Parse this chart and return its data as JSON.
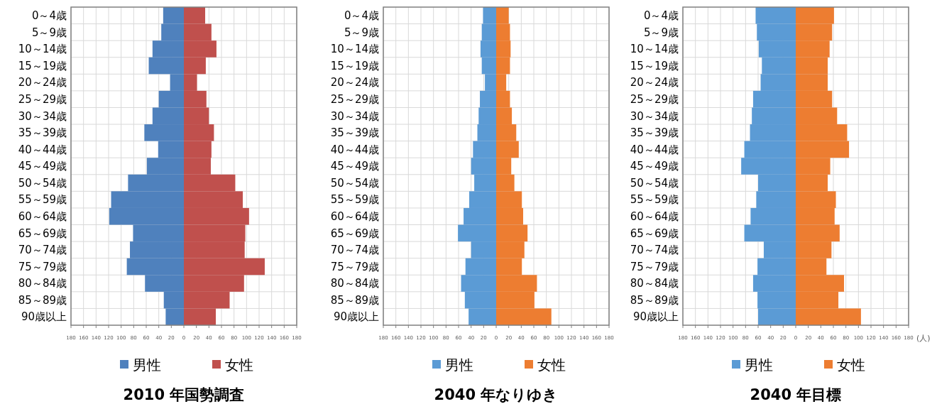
{
  "chart_data": [
    {
      "type": "bar",
      "orientation": "horizontal",
      "stacked": true,
      "title": "2010 年国勢調査",
      "categories": [
        "0～4歳",
        "5～9歳",
        "10～14歳",
        "15～19歳",
        "20～24歳",
        "25～29歳",
        "30～34歳",
        "35～39歳",
        "40～44歳",
        "45～49歳",
        "50～54歳",
        "55～59歳",
        "60～64歳",
        "65～69歳",
        "70～74歳",
        "75～79歳",
        "80～84歳",
        "85～89歳",
        "90歳以上"
      ],
      "series": [
        {
          "name": "男性",
          "color": "#4f81bd",
          "values": [
            -33,
            -36,
            -50,
            -56,
            -22,
            -40,
            -50,
            -63,
            -41,
            -59,
            -89,
            -116,
            -119,
            -81,
            -86,
            -91,
            -62,
            -32,
            -29
          ]
        },
        {
          "name": "女性",
          "color": "#c0504d",
          "values": [
            34,
            44,
            52,
            35,
            21,
            36,
            40,
            48,
            44,
            43,
            82,
            94,
            104,
            98,
            97,
            129,
            96,
            73,
            51
          ]
        }
      ],
      "xlim": [
        -180,
        180
      ],
      "xticks": [
        {
          "value": -180,
          "label": "180"
        },
        {
          "value": -160,
          "label": "160"
        },
        {
          "value": -140,
          "label": "140"
        },
        {
          "value": -120,
          "label": "120"
        },
        {
          "value": -100,
          "label": "100"
        },
        {
          "value": -80,
          "label": "80"
        },
        {
          "value": -60,
          "label": "60"
        },
        {
          "value": -40,
          "label": "40"
        },
        {
          "value": -20,
          "label": "20"
        },
        0,
        20,
        40,
        60,
        80,
        100,
        120,
        140,
        160,
        180
      ],
      "grid": true,
      "legend": "bottom"
    },
    {
      "type": "bar",
      "orientation": "horizontal",
      "stacked": true,
      "title": "2040 年なりゆき",
      "categories": [
        "0～4歳",
        "5～9歳",
        "10～14歳",
        "15～19歳",
        "20～24歳",
        "25～29歳",
        "30～34歳",
        "35～39歳",
        "40～44歳",
        "45～49歳",
        "50～54歳",
        "55～59歳",
        "60～64歳",
        "65～69歳",
        "70～74歳",
        "75～79歳",
        "80～84歳",
        "85～89歳",
        "90歳以上"
      ],
      "series": [
        {
          "name": "男性",
          "color": "#5b9bd5",
          "values": [
            -21,
            -23,
            -25,
            -23,
            -18,
            -26,
            -28,
            -30,
            -37,
            -40,
            -35,
            -43,
            -52,
            -61,
            -40,
            -49,
            -56,
            -50,
            -44
          ]
        },
        {
          "name": "女性",
          "color": "#ed7d31",
          "values": [
            20,
            22,
            23,
            22,
            16,
            22,
            25,
            32,
            36,
            24,
            29,
            41,
            43,
            50,
            45,
            41,
            65,
            61,
            88
          ]
        }
      ],
      "xlim": [
        -180,
        180
      ],
      "xticks": [
        {
          "value": -180,
          "label": "180"
        },
        {
          "value": -160,
          "label": "160"
        },
        {
          "value": -140,
          "label": "140"
        },
        {
          "value": -120,
          "label": "120"
        },
        {
          "value": -100,
          "label": "100"
        },
        {
          "value": -80,
          "label": "80"
        },
        {
          "value": -60,
          "label": "60"
        },
        {
          "value": -40,
          "label": "40"
        },
        {
          "value": -20,
          "label": "20"
        },
        0,
        20,
        40,
        60,
        80,
        100,
        120,
        140,
        160,
        180
      ],
      "grid": true,
      "legend": "bottom"
    },
    {
      "type": "bar",
      "orientation": "horizontal",
      "stacked": true,
      "title": "2040 年目標",
      "annotations": [
        "(人)"
      ],
      "categories": [
        "0～4歳",
        "5～9歳",
        "10～14歳",
        "15～19歳",
        "20～24歳",
        "25～29歳",
        "30～34歳",
        "35～39歳",
        "40～44歳",
        "45～49歳",
        "50～54歳",
        "55～59歳",
        "60～64歳",
        "65～69歳",
        "70～74歳",
        "75～79歳",
        "80～84歳",
        "85～89歳",
        "90歳以上"
      ],
      "series": [
        {
          "name": "男性",
          "color": "#5b9bd5",
          "values": [
            -64,
            -62,
            -59,
            -54,
            -56,
            -68,
            -70,
            -73,
            -82,
            -87,
            -60,
            -63,
            -72,
            -82,
            -51,
            -61,
            -68,
            -61,
            -60
          ]
        },
        {
          "name": "女性",
          "color": "#ed7d31",
          "values": [
            61,
            58,
            54,
            51,
            51,
            58,
            66,
            82,
            85,
            55,
            51,
            64,
            62,
            70,
            57,
            49,
            77,
            68,
            104
          ]
        }
      ],
      "xlim": [
        -180,
        180
      ],
      "xticks": [
        {
          "value": -180,
          "label": "180"
        },
        {
          "value": -160,
          "label": "160"
        },
        {
          "value": -140,
          "label": "140"
        },
        {
          "value": -120,
          "label": "120"
        },
        {
          "value": -100,
          "label": "100"
        },
        {
          "value": -80,
          "label": "80"
        },
        {
          "value": -60,
          "label": "60"
        },
        {
          "value": -40,
          "label": "40"
        },
        {
          "value": -20,
          "label": "20"
        },
        0,
        20,
        40,
        60,
        80,
        100,
        120,
        140,
        160,
        180
      ],
      "grid": true,
      "legend": "bottom"
    }
  ]
}
